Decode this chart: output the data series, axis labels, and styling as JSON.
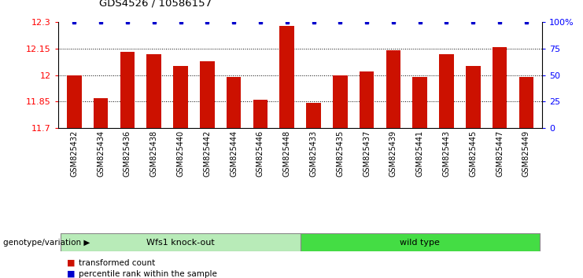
{
  "title": "GDS4526 / 10586157",
  "samples": [
    "GSM825432",
    "GSM825434",
    "GSM825436",
    "GSM825438",
    "GSM825440",
    "GSM825442",
    "GSM825444",
    "GSM825446",
    "GSM825448",
    "GSM825433",
    "GSM825435",
    "GSM825437",
    "GSM825439",
    "GSM825441",
    "GSM825443",
    "GSM825445",
    "GSM825447",
    "GSM825449"
  ],
  "bar_values": [
    12.0,
    11.87,
    12.13,
    12.12,
    12.05,
    12.08,
    11.99,
    11.86,
    12.28,
    11.84,
    12.0,
    12.02,
    12.14,
    11.99,
    12.12,
    12.05,
    12.16,
    11.99
  ],
  "percentile_values": [
    100,
    100,
    100,
    100,
    100,
    100,
    100,
    100,
    100,
    100,
    100,
    100,
    100,
    100,
    100,
    100,
    100,
    100
  ],
  "groups": [
    {
      "label": "Wfs1 knock-out",
      "start": 0,
      "end": 9,
      "color_light": "#cceecc",
      "color_dark": "#44dd44"
    },
    {
      "label": "wild type",
      "start": 9,
      "end": 18,
      "color_light": "#44dd44",
      "color_dark": "#44dd44"
    }
  ],
  "ylim_left": [
    11.7,
    12.3
  ],
  "ylim_right": [
    0,
    100
  ],
  "yticks_left": [
    11.7,
    11.85,
    12.0,
    12.15,
    12.3
  ],
  "yticks_right": [
    0,
    25,
    50,
    75,
    100
  ],
  "ytick_labels_left": [
    "11.7",
    "11.85",
    "12",
    "12.15",
    "12.3"
  ],
  "ytick_labels_right": [
    "0",
    "25",
    "50",
    "75",
    "100%"
  ],
  "grid_values": [
    11.85,
    12.0,
    12.15
  ],
  "bar_color": "#cc1100",
  "dot_color": "#0000cc",
  "bar_bottom": 11.7,
  "legend_items": [
    {
      "color": "#cc1100",
      "label": "transformed count"
    },
    {
      "color": "#0000cc",
      "label": "percentile rank within the sample"
    }
  ],
  "plot_bg_color": "#ffffff"
}
